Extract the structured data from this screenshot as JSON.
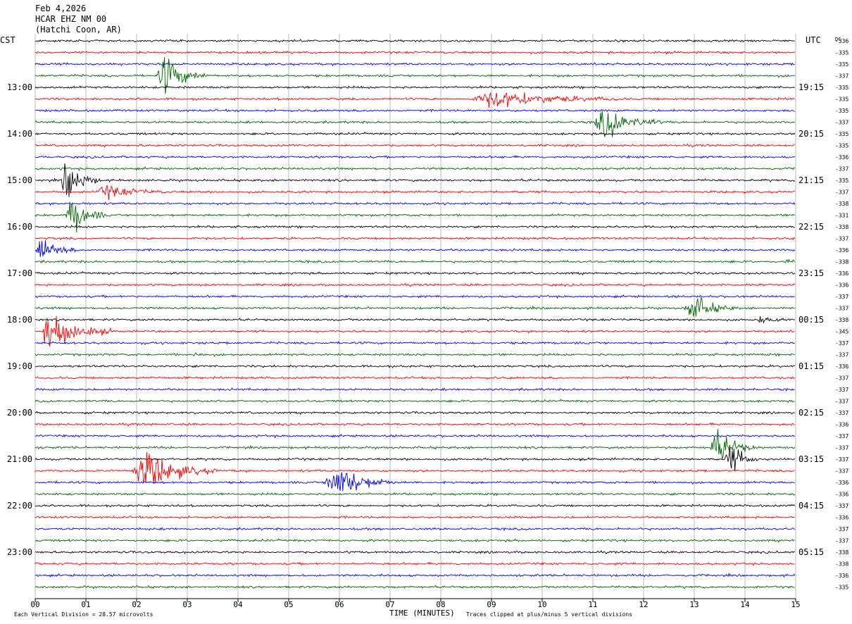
{
  "header": {
    "date": "Feb 4,2026",
    "station": "HCAR EHZ NM 00",
    "location": "(Hatchi Coon, AR)",
    "left_zone": "CST",
    "right_zone": "UTC",
    "dc_label": "DC"
  },
  "footer": {
    "scale_note": "Each Vertical Division =   28.57 microvolts",
    "axis_title": "TIME (MINUTES)",
    "clip_note": "Traces clipped at plus/minus 5 vertical divisions"
  },
  "chart_data": {
    "type": "line",
    "title": "HCAR EHZ NM 00",
    "xlabel": "TIME (MINUTES)",
    "ylabel": "",
    "xlim": [
      0,
      15
    ],
    "x_ticks": [
      "00",
      "01",
      "02",
      "03",
      "04",
      "05",
      "06",
      "07",
      "08",
      "09",
      "10",
      "11",
      "12",
      "13",
      "14",
      "15"
    ],
    "grid": true,
    "trace_colors": [
      "#000000",
      "#ff0000",
      "#0000ff",
      "#006400"
    ],
    "trace_count": 48,
    "left_hour_labels": [
      "13:00",
      "14:00",
      "15:00",
      "16:00",
      "17:00",
      "18:00",
      "19:00",
      "20:00",
      "21:00",
      "22:00",
      "23:00"
    ],
    "right_hour_labels": [
      "19:15",
      "20:15",
      "21:15",
      "22:15",
      "23:15",
      "00:15",
      "01:15",
      "02:15",
      "03:15",
      "04:15",
      "05:15"
    ],
    "dc_offsets": [
      "-336",
      "-335",
      "-335",
      "-337",
      "-335",
      "-335",
      "-335",
      "-337",
      "-335",
      "-335",
      "-336",
      "-337",
      "-335",
      "-337",
      "-338",
      "-331",
      "-338",
      "-337",
      "-336",
      "-338",
      "-336",
      "-336",
      "-337",
      "-337",
      "-338",
      "-345",
      "-337",
      "-337",
      "-336",
      "-337",
      "-337",
      "-337",
      "-337",
      "-336",
      "-337",
      "-337",
      "-337",
      "-337",
      "-336",
      "-336",
      "-337",
      "-336",
      "-337",
      "-337",
      "-338",
      "-338",
      "-336",
      "-335"
    ],
    "events": [
      {
        "trace": 3,
        "start_min": 2.4,
        "duration_min": 1.0,
        "amplitude": 5
      },
      {
        "trace": 5,
        "start_min": 8.6,
        "duration_min": 3.0,
        "amplitude": 2.2
      },
      {
        "trace": 7,
        "start_min": 11.0,
        "duration_min": 1.4,
        "amplitude": 4
      },
      {
        "trace": 12,
        "start_min": 0.5,
        "duration_min": 0.8,
        "amplitude": 5
      },
      {
        "trace": 13,
        "start_min": 1.2,
        "duration_min": 1.4,
        "amplitude": 1.6
      },
      {
        "trace": 15,
        "start_min": 0.6,
        "duration_min": 0.8,
        "amplitude": 5
      },
      {
        "trace": 18,
        "start_min": 0.0,
        "duration_min": 0.8,
        "amplitude": 3.5
      },
      {
        "trace": 19,
        "start_min": 14.8,
        "duration_min": 0.2,
        "amplitude": 1.2
      },
      {
        "trace": 23,
        "start_min": 12.8,
        "duration_min": 1.0,
        "amplitude": 3.5
      },
      {
        "trace": 24,
        "start_min": 14.2,
        "duration_min": 0.6,
        "amplitude": 0.8
      },
      {
        "trace": 25,
        "start_min": 0.1,
        "duration_min": 1.4,
        "amplitude": 5
      },
      {
        "trace": 27,
        "start_min": 3.1,
        "duration_min": 0.3,
        "amplitude": 0.9
      },
      {
        "trace": 35,
        "start_min": 13.3,
        "duration_min": 0.9,
        "amplitude": 5
      },
      {
        "trace": 36,
        "start_min": 13.6,
        "duration_min": 0.7,
        "amplitude": 4
      },
      {
        "trace": 37,
        "start_min": 1.9,
        "duration_min": 1.7,
        "amplitude": 5
      },
      {
        "trace": 38,
        "start_min": 5.7,
        "duration_min": 1.4,
        "amplitude": 5
      }
    ]
  }
}
